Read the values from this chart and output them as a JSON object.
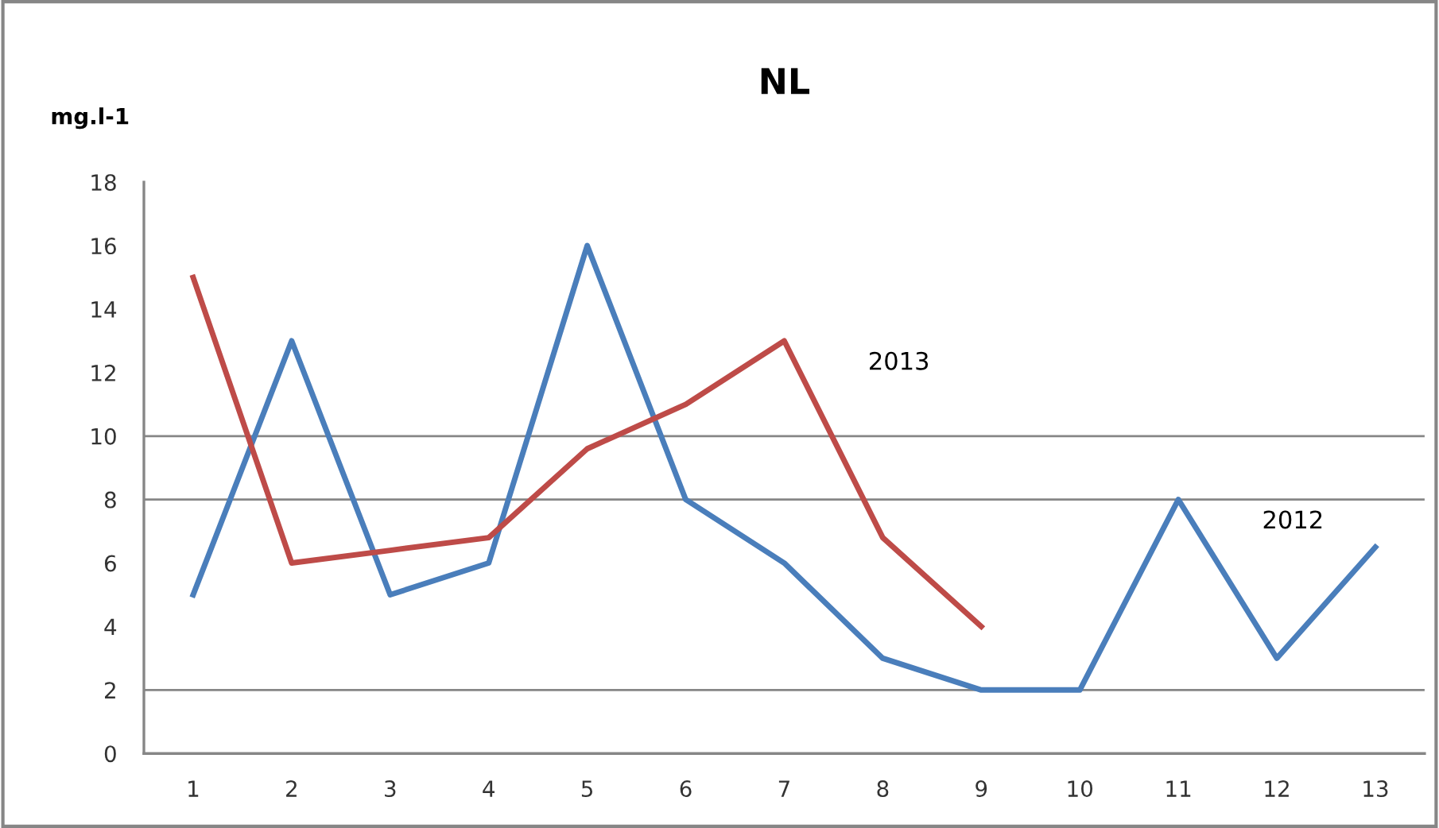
{
  "chart_data": {
    "type": "line",
    "title": "NL",
    "ylabel": "mg.l-1",
    "categories": [
      "1",
      "2",
      "3",
      "4",
      "5",
      "6",
      "7",
      "8",
      "9",
      "10",
      "11",
      "12",
      "13"
    ],
    "series": [
      {
        "name": "2012",
        "color": "#4a7ebb",
        "values": [
          5,
          13,
          5,
          6,
          16,
          8,
          6,
          3,
          2,
          2,
          8,
          3,
          6.5
        ]
      },
      {
        "name": "2013",
        "color": "#be4b48",
        "values": [
          15,
          6,
          6.4,
          6.8,
          9.6,
          11,
          13,
          6.8,
          4,
          null,
          null,
          null,
          null
        ]
      }
    ],
    "ylim": [
      0,
      18
    ],
    "yticks": [
      0,
      2,
      4,
      6,
      8,
      10,
      12,
      14,
      16,
      18
    ],
    "ref_lines": [
      {
        "axis": "y",
        "value": 2,
        "color": "#868686"
      },
      {
        "axis": "y",
        "value": 8,
        "color": "#868686"
      },
      {
        "axis": "y",
        "value": 10,
        "color": "#868686"
      }
    ],
    "grid": false,
    "legend": false,
    "marker": "none",
    "line_style": "solid"
  }
}
